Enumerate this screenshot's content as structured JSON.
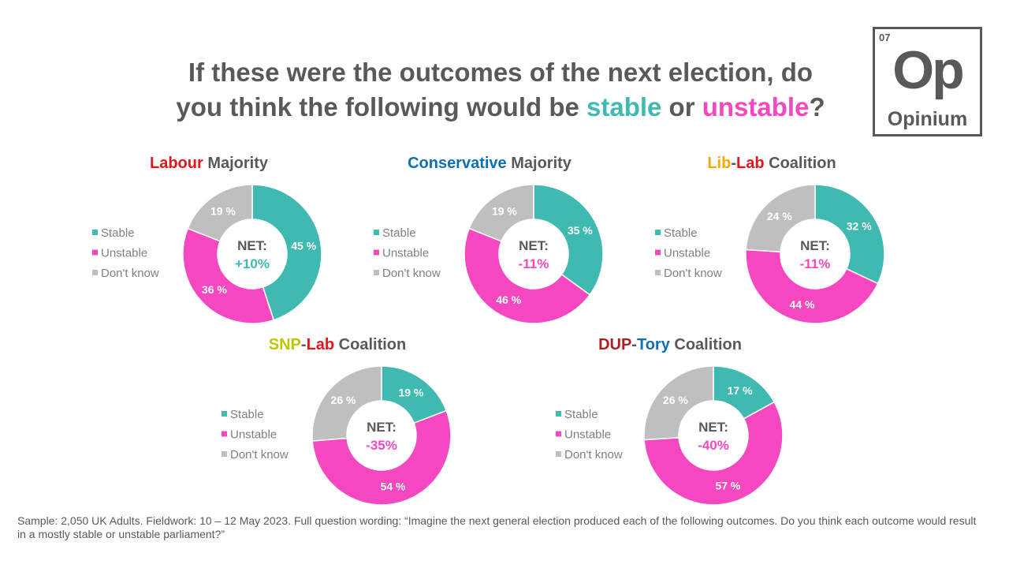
{
  "title": {
    "part1": "If these were the outcomes of the next election, do",
    "part2": "you think the following would be ",
    "stable_word": "stable",
    "or_word": " or ",
    "unstable_word": "unstable",
    "end": "?"
  },
  "logo": {
    "number": "07",
    "symbol": "Op",
    "name": "Opinium"
  },
  "colors": {
    "stable": "#40BAB0",
    "unstable": "#F548C0",
    "dont_know": "#BFBFBF",
    "text": "#595959",
    "labour": "#E4151B",
    "conservative": "#0F6FB5",
    "libdem": "#F5A800",
    "snp": "#BFC600",
    "dup": "#B01E23"
  },
  "legend": [
    "Stable",
    "Unstable",
    "Don't know"
  ],
  "net_label": "NET:",
  "chart_data": [
    {
      "type": "pie",
      "title_parts": [
        {
          "text": "Labour",
          "color": "labour"
        },
        {
          "text": " Majority",
          "color": "text"
        }
      ],
      "categories": [
        "Stable",
        "Unstable",
        "Don't know"
      ],
      "values": [
        45,
        36,
        19
      ],
      "labels": [
        "45 %",
        "36 %",
        "19 %"
      ],
      "net": "+10%"
    },
    {
      "type": "pie",
      "title_parts": [
        {
          "text": "Conservative",
          "color": "conservative"
        },
        {
          "text": " Majority",
          "color": "text"
        }
      ],
      "categories": [
        "Stable",
        "Unstable",
        "Don't know"
      ],
      "values": [
        35,
        46,
        19
      ],
      "labels": [
        "35 %",
        "46 %",
        "19 %"
      ],
      "net": "-11%"
    },
    {
      "type": "pie",
      "title_parts": [
        {
          "text": "Lib",
          "color": "libdem"
        },
        {
          "text": "-",
          "color": "text"
        },
        {
          "text": "Lab",
          "color": "labour"
        },
        {
          "text": " Coalition",
          "color": "text"
        }
      ],
      "categories": [
        "Stable",
        "Unstable",
        "Don't know"
      ],
      "values": [
        32,
        44,
        24
      ],
      "labels": [
        "32 %",
        "44 %",
        "24 %"
      ],
      "net": "-11%"
    },
    {
      "type": "pie",
      "title_parts": [
        {
          "text": "SNP",
          "color": "snp"
        },
        {
          "text": "-",
          "color": "text"
        },
        {
          "text": "Lab",
          "color": "labour"
        },
        {
          "text": " Coalition",
          "color": "text"
        }
      ],
      "categories": [
        "Stable",
        "Unstable",
        "Don't know"
      ],
      "values": [
        19,
        54,
        26
      ],
      "labels": [
        "19 %",
        "54 %",
        "26 %"
      ],
      "net": "-35%"
    },
    {
      "type": "pie",
      "title_parts": [
        {
          "text": "DUP",
          "color": "dup"
        },
        {
          "text": "-",
          "color": "text"
        },
        {
          "text": "Tory",
          "color": "conservative"
        },
        {
          "text": " Coalition",
          "color": "text"
        }
      ],
      "categories": [
        "Stable",
        "Unstable",
        "Don't know"
      ],
      "values": [
        17,
        57,
        26
      ],
      "labels": [
        "17 %",
        "57 %",
        "26 %"
      ],
      "net": "-40%"
    }
  ],
  "footnote": "Sample: 2,050 UK Adults. Fieldwork: 10 – 12 May 2023. Full question wording: “Imagine the next general election produced each of the following outcomes. Do you think each outcome would result in a mostly stable or unstable parliament?”"
}
